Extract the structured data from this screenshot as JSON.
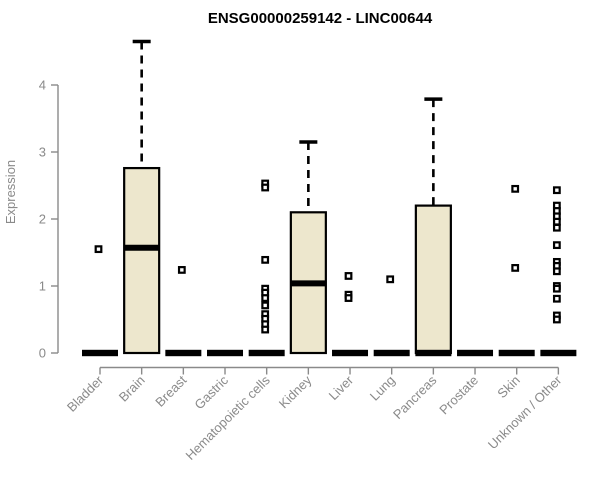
{
  "chart_data": {
    "type": "boxplot",
    "title": "ENSG00000259142 - LINC00644",
    "ylabel": "Expression",
    "xlabel": "",
    "ylim": [
      0,
      4.7
    ],
    "yticks": [
      0,
      1,
      2,
      3,
      4
    ],
    "grid": false,
    "legend": null,
    "categories": [
      "Bladder",
      "Brain",
      "Breast",
      "Gastric",
      "Hematopoietic cells",
      "Kidney",
      "Liver",
      "Lung",
      "Pancreas",
      "Prostate",
      "Skin",
      "Unknown / Other"
    ],
    "boxes": [
      {
        "category": "Bladder",
        "q1": 0,
        "median": 0,
        "q3": 0,
        "whisker_low": 0,
        "whisker_high": 0,
        "outliers": [
          1.55
        ]
      },
      {
        "category": "Brain",
        "q1": 0,
        "median": 1.57,
        "q3": 2.76,
        "whisker_low": 0,
        "whisker_high": 4.65,
        "outliers": []
      },
      {
        "category": "Breast",
        "q1": 0,
        "median": 0,
        "q3": 0,
        "whisker_low": 0,
        "whisker_high": 0,
        "outliers": [
          1.24
        ]
      },
      {
        "category": "Gastric",
        "q1": 0,
        "median": 0,
        "q3": 0,
        "whisker_low": 0,
        "whisker_high": 0,
        "outliers": []
      },
      {
        "category": "Hematopoietic cells",
        "q1": 0,
        "median": 0,
        "q3": 0,
        "whisker_low": 0,
        "whisker_high": 0,
        "outliers": [
          2.53,
          2.47,
          1.39,
          0.96,
          0.9,
          0.82,
          0.71,
          0.58,
          0.51,
          0.43,
          0.35
        ]
      },
      {
        "category": "Kidney",
        "q1": 0,
        "median": 1.04,
        "q3": 2.1,
        "whisker_low": 0,
        "whisker_high": 3.15,
        "outliers": []
      },
      {
        "category": "Liver",
        "q1": 0,
        "median": 0,
        "q3": 0,
        "whisker_low": 0,
        "whisker_high": 0,
        "outliers": [
          1.15,
          0.87,
          0.82
        ]
      },
      {
        "category": "Lung",
        "q1": 0,
        "median": 0,
        "q3": 0,
        "whisker_low": 0,
        "whisker_high": 0,
        "outliers": [
          1.1
        ]
      },
      {
        "category": "Pancreas",
        "q1": 0,
        "median": 0,
        "q3": 2.2,
        "whisker_low": 0,
        "whisker_high": 3.79,
        "outliers": []
      },
      {
        "category": "Prostate",
        "q1": 0,
        "median": 0,
        "q3": 0,
        "whisker_low": 0,
        "whisker_high": 0,
        "outliers": []
      },
      {
        "category": "Skin",
        "q1": 0,
        "median": 0,
        "q3": 0,
        "whisker_low": 0,
        "whisker_high": 0,
        "outliers": [
          2.45,
          1.27
        ]
      },
      {
        "category": "Unknown / Other",
        "q1": 0,
        "median": 0,
        "q3": 0,
        "whisker_low": 0,
        "whisker_high": 0,
        "outliers": [
          2.43,
          2.2,
          2.12,
          2.04,
          1.96,
          1.87,
          1.61,
          1.36,
          1.3,
          1.22,
          1.0,
          0.96,
          0.81,
          0.56,
          0.5
        ]
      }
    ],
    "colors": {
      "box_fill": "#ede7cd",
      "box_stroke": "#000000",
      "median": "#000000",
      "whisker": "#000000",
      "outlier_stroke": "#000000",
      "outlier_fill": "#ffffff",
      "axis": "#8a8a8a",
      "tick_label": "#8a8a8a",
      "title": "#000000"
    }
  }
}
